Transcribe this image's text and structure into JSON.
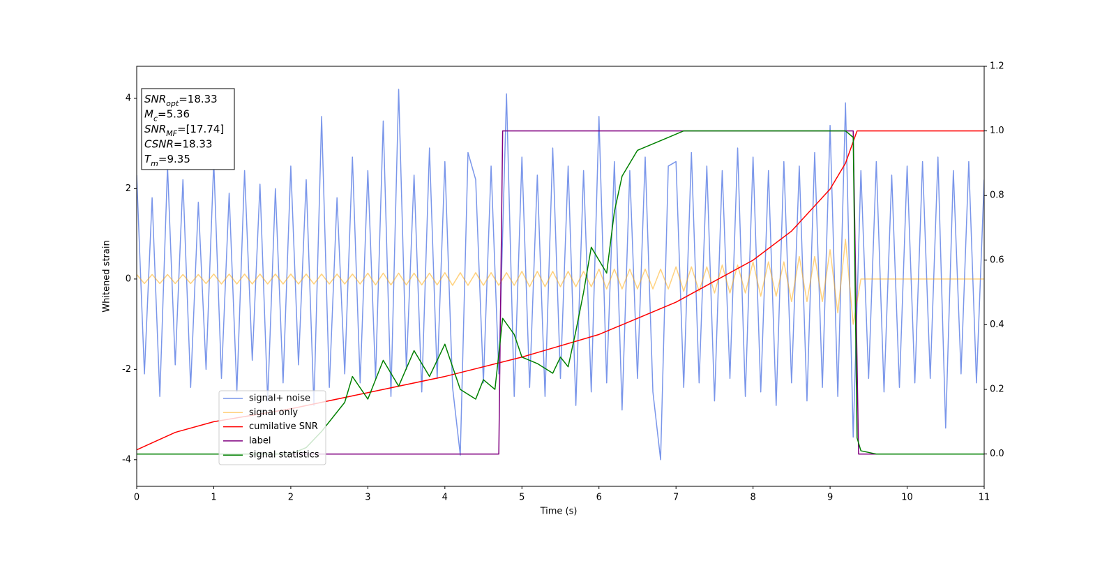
{
  "chart_data": {
    "type": "line",
    "xlabel": "Time (s)",
    "ylabel": "Whitened strain",
    "xlim": [
      0,
      11
    ],
    "ylim": [
      -4.59,
      4.71
    ],
    "y2lim": [
      -0.1,
      1.2
    ],
    "xticks": [
      0,
      1,
      2,
      3,
      4,
      5,
      6,
      7,
      8,
      9,
      10,
      11
    ],
    "yticks": [
      -4,
      -2,
      0,
      2,
      4
    ],
    "y2ticks": [
      {
        "value": 0,
        "label": "0.0"
      },
      {
        "value": 0.2,
        "label": "0.2"
      },
      {
        "value": 0.4,
        "label": "0.4"
      },
      {
        "value": 0.6,
        "label": "0.6"
      },
      {
        "value": 0.8,
        "label": "0.8"
      },
      {
        "value": 1.0,
        "label": "1.0"
      },
      {
        "value": 1.2,
        "label": "1.2"
      }
    ],
    "x": [
      0,
      0.1,
      0.2,
      0.3,
      0.4,
      0.5,
      0.6,
      0.7,
      0.8,
      0.9,
      1,
      1.1,
      1.2,
      1.3,
      1.4,
      1.5,
      1.6,
      1.7,
      1.8,
      1.9,
      2,
      2.1,
      2.2,
      2.3,
      2.4,
      2.5,
      2.6,
      2.7,
      2.8,
      2.9,
      3,
      3.1,
      3.2,
      3.3,
      3.4,
      3.5,
      3.6,
      3.7,
      3.8,
      3.9,
      4,
      4.1,
      4.2,
      4.3,
      4.4,
      4.5,
      4.6,
      4.7,
      4.8,
      4.9,
      5,
      5.1,
      5.2,
      5.3,
      5.4,
      5.5,
      5.6,
      5.7,
      5.8,
      5.9,
      6,
      6.1,
      6.2,
      6.3,
      6.4,
      6.5,
      6.6,
      6.7,
      6.8,
      6.9,
      7,
      7.1,
      7.2,
      7.3,
      7.4,
      7.5,
      7.6,
      7.7,
      7.8,
      7.9,
      8,
      8.1,
      8.2,
      8.3,
      8.4,
      8.5,
      8.6,
      8.7,
      8.8,
      8.9,
      9,
      9.1,
      9.2,
      9.3,
      9.4,
      9.5,
      9.6,
      9.7,
      9.8,
      9.9,
      10,
      10.1,
      10.2,
      10.3,
      10.4,
      10.5,
      10.6,
      10.7,
      10.8,
      10.9,
      11
    ],
    "series": [
      {
        "name": "signal+ noise",
        "color": "#4169e1",
        "alpha": 0.7,
        "values": [
          2.3,
          -2.1,
          1.8,
          -2.6,
          2.5,
          -1.9,
          2.2,
          -2.4,
          1.7,
          -2.0,
          2.6,
          -2.2,
          1.9,
          -2.5,
          2.4,
          -1.8,
          2.1,
          -2.7,
          2.0,
          -2.3,
          2.5,
          -1.9,
          2.2,
          -2.8,
          3.6,
          -2.4,
          1.8,
          -2.1,
          2.7,
          -2.3,
          2.4,
          -2.2,
          3.5,
          -2.6,
          4.2,
          -2.0,
          2.3,
          -2.5,
          2.9,
          -2.2,
          2.6,
          -2.4,
          -3.9,
          2.8,
          2.2,
          -2.3,
          2.5,
          -2.1,
          4.1,
          -2.6,
          2.7,
          -2.4,
          2.3,
          -2.6,
          2.9,
          -2.2,
          2.5,
          -2.8,
          2.4,
          -2.5,
          3.6,
          -2.3,
          2.6,
          -2.9,
          2.4,
          -2.2,
          2.7,
          -2.5,
          -4.0,
          2.5,
          2.6,
          -2.4,
          2.8,
          -2.3,
          2.5,
          -2.7,
          2.4,
          -2.2,
          2.9,
          -2.6,
          2.7,
          -2.5,
          2.4,
          -2.8,
          2.6,
          -2.3,
          2.5,
          -2.7,
          2.8,
          -2.4,
          3.4,
          -2.6,
          3.9,
          -3.5,
          2.4,
          -2.2,
          2.6,
          -2.5,
          2.3,
          -2.4,
          2.5,
          -2.3,
          2.6,
          -2.2,
          2.7,
          -3.3,
          2.4,
          -2.1,
          2.6,
          -2.3,
          2.2
        ]
      },
      {
        "name": "signal only",
        "color": "#ffa500",
        "alpha": 0.5,
        "values": [
          0.1,
          -0.1,
          0.1,
          -0.1,
          0.1,
          -0.1,
          0.1,
          -0.1,
          0.1,
          -0.1,
          0.11,
          -0.11,
          0.11,
          -0.11,
          0.11,
          -0.11,
          0.11,
          -0.11,
          0.11,
          -0.11,
          0.11,
          -0.11,
          0.11,
          -0.11,
          0.11,
          -0.11,
          0.11,
          -0.11,
          0.11,
          -0.11,
          0.13,
          -0.13,
          0.13,
          -0.13,
          0.13,
          -0.13,
          0.13,
          -0.13,
          0.13,
          -0.13,
          0.14,
          -0.14,
          0.14,
          -0.14,
          0.14,
          -0.14,
          0.14,
          -0.14,
          0.14,
          -0.14,
          0.17,
          -0.17,
          0.17,
          -0.17,
          0.17,
          -0.17,
          0.17,
          -0.17,
          0.17,
          -0.17,
          0.22,
          -0.22,
          0.22,
          -0.22,
          0.22,
          -0.22,
          0.22,
          -0.22,
          0.22,
          -0.22,
          0.27,
          -0.27,
          0.27,
          -0.27,
          0.27,
          -0.31,
          0.31,
          -0.31,
          0.31,
          -0.31,
          0.38,
          -0.38,
          0.38,
          -0.38,
          0.38,
          -0.5,
          0.5,
          -0.5,
          0.5,
          -0.5,
          0.65,
          -0.75,
          0.88,
          -1.0,
          0,
          0,
          0,
          0,
          0,
          0,
          0,
          0,
          0,
          0,
          0,
          0,
          0,
          0,
          0,
          0,
          0
        ]
      },
      {
        "name": "cumilative SNR",
        "color": "#ff0000",
        "axis": "y2",
        "x": [
          0,
          0.5,
          1,
          2,
          3,
          4,
          5,
          6,
          7,
          8,
          8.5,
          9,
          9.2,
          9.35,
          11
        ],
        "values": [
          0.013,
          0.067,
          0.1,
          0.14,
          0.19,
          0.24,
          0.3,
          0.37,
          0.47,
          0.6,
          0.69,
          0.82,
          0.9,
          1.0,
          1.0
        ]
      },
      {
        "name": "label",
        "color": "#800080",
        "axis": "y2",
        "x": [
          0,
          4.7,
          4.75,
          9.3,
          9.37,
          11
        ],
        "values": [
          0,
          0,
          1,
          1,
          0,
          0
        ]
      },
      {
        "name": "signal statistics",
        "color": "#008000",
        "axis": "y2",
        "x": [
          0,
          2,
          2.2,
          2.4,
          2.7,
          2.8,
          3.0,
          3.2,
          3.4,
          3.6,
          3.8,
          4.0,
          4.2,
          4.4,
          4.5,
          4.65,
          4.75,
          4.9,
          5.0,
          5.2,
          5.4,
          5.5,
          5.6,
          5.7,
          5.8,
          5.9,
          6.0,
          6.1,
          6.2,
          6.3,
          6.5,
          6.7,
          6.9,
          7.1,
          8,
          9.2,
          9.3,
          9.35,
          9.4,
          9.6,
          11
        ],
        "values": [
          0,
          0,
          0.02,
          0.07,
          0.16,
          0.24,
          0.17,
          0.29,
          0.21,
          0.32,
          0.24,
          0.34,
          0.2,
          0.17,
          0.23,
          0.2,
          0.42,
          0.37,
          0.3,
          0.28,
          0.25,
          0.3,
          0.27,
          0.38,
          0.5,
          0.64,
          0.6,
          0.56,
          0.75,
          0.86,
          0.94,
          0.96,
          0.98,
          1.0,
          1.0,
          1.0,
          0.98,
          0.05,
          0.01,
          0,
          0
        ]
      }
    ],
    "annotations": [
      {
        "symbol": "SNR",
        "subscript": "opt",
        "text": "=18.33"
      },
      {
        "symbol": "M",
        "subscript": "c",
        "text": "=5.36"
      },
      {
        "symbol": "SNR",
        "subscript": "MF",
        "text": "=[17.74]"
      },
      {
        "symbol": "CSNR",
        "text": "=18.33"
      },
      {
        "symbol": "T",
        "subscript": "m",
        "text": "=9.35"
      }
    ]
  }
}
